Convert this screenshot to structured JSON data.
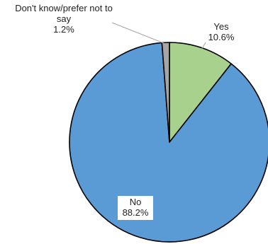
{
  "chart_data": {
    "type": "pie",
    "slices": [
      {
        "label": "Yes",
        "value": 10.6,
        "value_label": "10.6%",
        "color": "#a9d18e"
      },
      {
        "label": "No",
        "value": 88.2,
        "value_label": "88.2%",
        "color": "#5b9bd5"
      },
      {
        "label_lines": [
          "Don't know/prefer not to",
          "say"
        ],
        "value": 1.2,
        "value_label": "1.2%",
        "color": "#a5a5a5"
      }
    ],
    "start_angle_deg": 0,
    "direction": "clockwise",
    "legend": "none"
  }
}
